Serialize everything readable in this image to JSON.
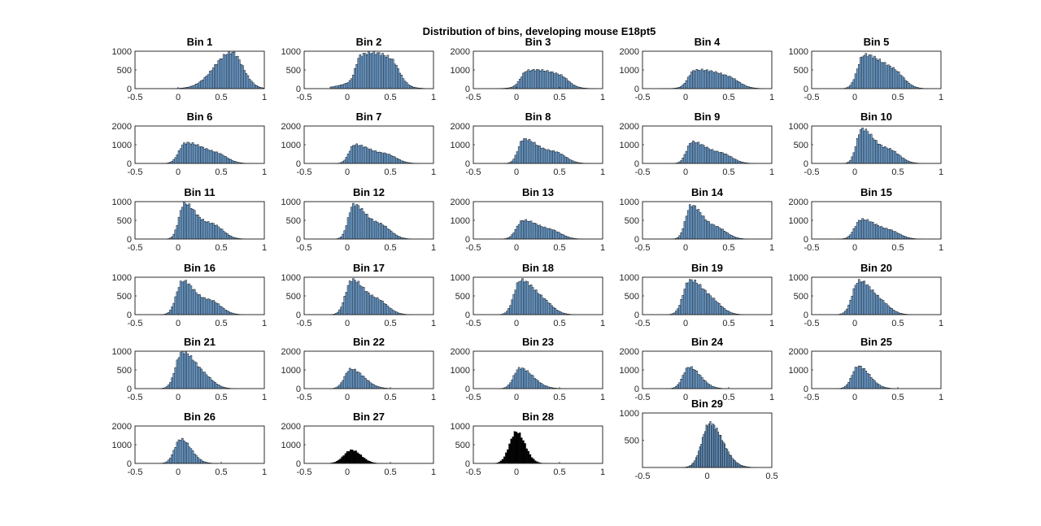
{
  "figure": {
    "title": "Distribution of bins, developing mouse E18pt5"
  },
  "chart_data": [
    {
      "type": "bar",
      "title": "Bin 1",
      "xlim": [
        -0.5,
        1
      ],
      "xticks": [
        "-0.5",
        "0",
        "0.5",
        "1"
      ],
      "ylim": [
        0,
        1000
      ],
      "yticks": [
        "0",
        "500",
        "1000"
      ],
      "color": "#73a4d4",
      "peaks": [
        {
          "mu": 0.62,
          "sl": 0.2,
          "sr": 0.13,
          "h": 920
        }
      ],
      "max": 970,
      "lo": -0.2,
      "hi": 1.0
    },
    {
      "type": "bar",
      "title": "Bin 2",
      "xlim": [
        -0.5,
        1
      ],
      "xticks": [
        "-0.5",
        "0",
        "0.5",
        "1"
      ],
      "ylim": [
        0,
        1000
      ],
      "yticks": [
        "0",
        "500",
        "1000"
      ],
      "color": "#73a4d4",
      "peaks": [
        {
          "mu": 0.15,
          "sl": 0.05,
          "sr": 0.25,
          "h": 720
        },
        {
          "mu": 0.5,
          "sl": 0.3,
          "sr": 0.1,
          "h": 760
        }
      ],
      "max": 960,
      "lo": -0.2,
      "hi": 0.9
    },
    {
      "type": "bar",
      "title": "Bin 3",
      "xlim": [
        -0.5,
        1
      ],
      "xticks": [
        "-0.5",
        "0",
        "0.5",
        "1"
      ],
      "ylim": [
        0,
        2000
      ],
      "yticks": [
        "0",
        "1000",
        "2000"
      ],
      "color": "#73a4d4",
      "peaks": [
        {
          "mu": 0.12,
          "sl": 0.07,
          "sr": 0.25,
          "h": 780
        },
        {
          "mu": 0.5,
          "sl": 0.25,
          "sr": 0.1,
          "h": 500
        }
      ],
      "max": 1000,
      "lo": -0.25,
      "hi": 0.9
    },
    {
      "type": "bar",
      "title": "Bin 4",
      "xlim": [
        -0.5,
        1
      ],
      "xticks": [
        "-0.5",
        "0",
        "0.5",
        "1"
      ],
      "ylim": [
        0,
        2000
      ],
      "yticks": [
        "0",
        "1000",
        "2000"
      ],
      "color": "#73a4d4",
      "peaks": [
        {
          "mu": 0.1,
          "sl": 0.07,
          "sr": 0.25,
          "h": 800
        },
        {
          "mu": 0.5,
          "sl": 0.25,
          "sr": 0.12,
          "h": 400
        }
      ],
      "max": 1000,
      "lo": -0.3,
      "hi": 0.9
    },
    {
      "type": "bar",
      "title": "Bin 5",
      "xlim": [
        -0.5,
        1
      ],
      "xticks": [
        "-0.5",
        "0",
        "0.5",
        "1"
      ],
      "ylim": [
        0,
        1000
      ],
      "yticks": [
        "0",
        "500",
        "1000"
      ],
      "color": "#73a4d4",
      "peaks": [
        {
          "mu": 0.1,
          "sl": 0.07,
          "sr": 0.18,
          "h": 750
        },
        {
          "mu": 0.45,
          "sl": 0.18,
          "sr": 0.12,
          "h": 380
        }
      ],
      "max": 900,
      "lo": -0.3,
      "hi": 0.85
    },
    {
      "type": "bar",
      "title": "Bin 6",
      "xlim": [
        -0.5,
        1
      ],
      "xticks": [
        "-0.5",
        "0",
        "0.5",
        "1"
      ],
      "ylim": [
        0,
        2000
      ],
      "yticks": [
        "0",
        "1000",
        "2000"
      ],
      "color": "#73a4d4",
      "peaks": [
        {
          "mu": 0.08,
          "sl": 0.07,
          "sr": 0.18,
          "h": 900
        },
        {
          "mu": 0.45,
          "sl": 0.2,
          "sr": 0.12,
          "h": 420
        }
      ],
      "max": 1100,
      "lo": -0.3,
      "hi": 0.85
    },
    {
      "type": "bar",
      "title": "Bin 7",
      "xlim": [
        -0.5,
        1
      ],
      "xticks": [
        "-0.5",
        "0",
        "0.5",
        "1"
      ],
      "ylim": [
        0,
        2000
      ],
      "yticks": [
        "0",
        "1000",
        "2000"
      ],
      "color": "#73a4d4",
      "peaks": [
        {
          "mu": 0.08,
          "sl": 0.06,
          "sr": 0.16,
          "h": 850
        },
        {
          "mu": 0.45,
          "sl": 0.18,
          "sr": 0.12,
          "h": 420
        }
      ],
      "max": 1000,
      "lo": -0.3,
      "hi": 0.85
    },
    {
      "type": "bar",
      "title": "Bin 8",
      "xlim": [
        -0.5,
        1
      ],
      "xticks": [
        "-0.5",
        "0",
        "0.5",
        "1"
      ],
      "ylim": [
        0,
        2000
      ],
      "yticks": [
        "0",
        "1000",
        "2000"
      ],
      "color": "#73a4d4",
      "peaks": [
        {
          "mu": 0.08,
          "sl": 0.06,
          "sr": 0.15,
          "h": 1100
        },
        {
          "mu": 0.45,
          "sl": 0.18,
          "sr": 0.12,
          "h": 520
        }
      ],
      "max": 1300,
      "lo": -0.3,
      "hi": 0.85
    },
    {
      "type": "bar",
      "title": "Bin 9",
      "xlim": [
        -0.5,
        1
      ],
      "xticks": [
        "-0.5",
        "0",
        "0.5",
        "1"
      ],
      "ylim": [
        0,
        2000
      ],
      "yticks": [
        "0",
        "1000",
        "2000"
      ],
      "color": "#73a4d4",
      "peaks": [
        {
          "mu": 0.07,
          "sl": 0.06,
          "sr": 0.15,
          "h": 950
        },
        {
          "mu": 0.42,
          "sl": 0.18,
          "sr": 0.12,
          "h": 450
        }
      ],
      "max": 1150,
      "lo": -0.3,
      "hi": 0.8
    },
    {
      "type": "bar",
      "title": "Bin 10",
      "xlim": [
        -0.5,
        1
      ],
      "xticks": [
        "-0.5",
        "0",
        "0.5",
        "1"
      ],
      "ylim": [
        0,
        1000
      ],
      "yticks": [
        "0",
        "500",
        "1000"
      ],
      "color": "#73a4d4",
      "peaks": [
        {
          "mu": 0.08,
          "sl": 0.06,
          "sr": 0.13,
          "h": 780
        },
        {
          "mu": 0.4,
          "sl": 0.15,
          "sr": 0.12,
          "h": 310
        }
      ],
      "max": 920,
      "lo": -0.3,
      "hi": 0.8
    },
    {
      "type": "bar",
      "title": "Bin 11",
      "xlim": [
        -0.5,
        1
      ],
      "xticks": [
        "-0.5",
        "0",
        "0.5",
        "1"
      ],
      "ylim": [
        0,
        1000
      ],
      "yticks": [
        "0",
        "500",
        "1000"
      ],
      "color": "#73a4d4",
      "peaks": [
        {
          "mu": 0.07,
          "sl": 0.06,
          "sr": 0.13,
          "h": 800
        },
        {
          "mu": 0.4,
          "sl": 0.15,
          "sr": 0.12,
          "h": 330
        }
      ],
      "max": 950,
      "lo": -0.3,
      "hi": 0.8
    },
    {
      "type": "bar",
      "title": "Bin 12",
      "xlim": [
        -0.5,
        1
      ],
      "xticks": [
        "-0.5",
        "0",
        "0.5",
        "1"
      ],
      "ylim": [
        0,
        1000
      ],
      "yticks": [
        "0",
        "500",
        "1000"
      ],
      "color": "#73a4d4",
      "peaks": [
        {
          "mu": 0.07,
          "sl": 0.06,
          "sr": 0.13,
          "h": 780
        },
        {
          "mu": 0.38,
          "sl": 0.15,
          "sr": 0.12,
          "h": 330
        }
      ],
      "max": 920,
      "lo": -0.3,
      "hi": 0.8
    },
    {
      "type": "bar",
      "title": "Bin 13",
      "xlim": [
        -0.5,
        1
      ],
      "xticks": [
        "-0.5",
        "0",
        "0.5",
        "1"
      ],
      "ylim": [
        0,
        2000
      ],
      "yticks": [
        "0",
        "1000",
        "2000"
      ],
      "color": "#73a4d4",
      "peaks": [
        {
          "mu": 0.07,
          "sl": 0.07,
          "sr": 0.15,
          "h": 850
        },
        {
          "mu": 0.4,
          "sl": 0.18,
          "sr": 0.12,
          "h": 420
        }
      ],
      "max": 1000,
      "lo": -0.3,
      "hi": 0.8
    },
    {
      "type": "bar",
      "title": "Bin 14",
      "xlim": [
        -0.5,
        1
      ],
      "xticks": [
        "-0.5",
        "0",
        "0.5",
        "1"
      ],
      "ylim": [
        0,
        1000
      ],
      "yticks": [
        "0",
        "500",
        "1000"
      ],
      "color": "#73a4d4",
      "peaks": [
        {
          "mu": 0.06,
          "sl": 0.06,
          "sr": 0.12,
          "h": 780
        },
        {
          "mu": 0.35,
          "sl": 0.15,
          "sr": 0.12,
          "h": 280
        }
      ],
      "max": 900,
      "lo": -0.3,
      "hi": 0.75
    },
    {
      "type": "bar",
      "title": "Bin 15",
      "xlim": [
        -0.5,
        1
      ],
      "xticks": [
        "-0.5",
        "0",
        "0.5",
        "1"
      ],
      "ylim": [
        0,
        2000
      ],
      "yticks": [
        "0",
        "1000",
        "2000"
      ],
      "color": "#73a4d4",
      "peaks": [
        {
          "mu": 0.07,
          "sl": 0.07,
          "sr": 0.15,
          "h": 850
        },
        {
          "mu": 0.4,
          "sl": 0.18,
          "sr": 0.12,
          "h": 380
        }
      ],
      "max": 1050,
      "lo": -0.3,
      "hi": 0.8
    },
    {
      "type": "bar",
      "title": "Bin 16",
      "xlim": [
        -0.5,
        1
      ],
      "xticks": [
        "-0.5",
        "0",
        "0.5",
        "1"
      ],
      "ylim": [
        0,
        1000
      ],
      "yticks": [
        "0",
        "500",
        "1000"
      ],
      "color": "#73a4d4",
      "peaks": [
        {
          "mu": 0.05,
          "sl": 0.07,
          "sr": 0.13,
          "h": 800
        },
        {
          "mu": 0.38,
          "sl": 0.15,
          "sr": 0.12,
          "h": 330
        }
      ],
      "max": 900,
      "lo": -0.3,
      "hi": 0.75
    },
    {
      "type": "bar",
      "title": "Bin 17",
      "xlim": [
        -0.5,
        1
      ],
      "xticks": [
        "-0.5",
        "0",
        "0.5",
        "1"
      ],
      "ylim": [
        0,
        1000
      ],
      "yticks": [
        "0",
        "500",
        "1000"
      ],
      "color": "#73a4d4",
      "peaks": [
        {
          "mu": 0.05,
          "sl": 0.07,
          "sr": 0.13,
          "h": 820
        },
        {
          "mu": 0.35,
          "sl": 0.15,
          "sr": 0.12,
          "h": 350
        }
      ],
      "max": 930,
      "lo": -0.3,
      "hi": 0.75
    },
    {
      "type": "bar",
      "title": "Bin 18",
      "xlim": [
        -0.5,
        1
      ],
      "xticks": [
        "-0.5",
        "0",
        "0.5",
        "1"
      ],
      "ylim": [
        0,
        1000
      ],
      "yticks": [
        "0",
        "500",
        "1000"
      ],
      "color": "#73a4d4",
      "peaks": [
        {
          "mu": 0.04,
          "sl": 0.07,
          "sr": 0.14,
          "h": 830
        },
        {
          "mu": 0.3,
          "sl": 0.15,
          "sr": 0.12,
          "h": 330
        }
      ],
      "max": 920,
      "lo": -0.3,
      "hi": 0.75
    },
    {
      "type": "bar",
      "title": "Bin 19",
      "xlim": [
        -0.5,
        1
      ],
      "xticks": [
        "-0.5",
        "0",
        "0.5",
        "1"
      ],
      "ylim": [
        0,
        1000
      ],
      "yticks": [
        "0",
        "500",
        "1000"
      ],
      "color": "#73a4d4",
      "peaks": [
        {
          "mu": 0.04,
          "sl": 0.07,
          "sr": 0.14,
          "h": 830
        },
        {
          "mu": 0.3,
          "sl": 0.15,
          "sr": 0.12,
          "h": 330
        }
      ],
      "max": 920,
      "lo": -0.3,
      "hi": 0.75
    },
    {
      "type": "bar",
      "title": "Bin 20",
      "xlim": [
        -0.5,
        1
      ],
      "xticks": [
        "-0.5",
        "0",
        "0.5",
        "1"
      ],
      "ylim": [
        0,
        1000
      ],
      "yticks": [
        "0",
        "500",
        "1000"
      ],
      "color": "#73a4d4",
      "peaks": [
        {
          "mu": 0.04,
          "sl": 0.07,
          "sr": 0.13,
          "h": 800
        },
        {
          "mu": 0.28,
          "sl": 0.15,
          "sr": 0.12,
          "h": 330
        }
      ],
      "max": 900,
      "lo": -0.3,
      "hi": 0.7
    },
    {
      "type": "bar",
      "title": "Bin 21",
      "xlim": [
        -0.5,
        1
      ],
      "xticks": [
        "-0.5",
        "0",
        "0.5",
        "1"
      ],
      "ylim": [
        0,
        1000
      ],
      "yticks": [
        "0",
        "500",
        "1000"
      ],
      "color": "#73a4d4",
      "peaks": [
        {
          "mu": 0.04,
          "sl": 0.07,
          "sr": 0.13,
          "h": 880
        },
        {
          "mu": 0.28,
          "sl": 0.15,
          "sr": 0.12,
          "h": 330
        }
      ],
      "max": 980,
      "lo": -0.3,
      "hi": 0.7
    },
    {
      "type": "bar",
      "title": "Bin 22",
      "xlim": [
        -0.5,
        1
      ],
      "xticks": [
        "-0.5",
        "0",
        "0.5",
        "1"
      ],
      "ylim": [
        0,
        2000
      ],
      "yticks": [
        "0",
        "1000",
        "2000"
      ],
      "color": "#73a4d4",
      "peaks": [
        {
          "mu": 0.04,
          "sl": 0.07,
          "sr": 0.15,
          "h": 1000
        }
      ],
      "max": 1050,
      "lo": -0.3,
      "hi": 0.7
    },
    {
      "type": "bar",
      "title": "Bin 23",
      "xlim": [
        -0.5,
        1
      ],
      "xticks": [
        "-0.5",
        "0",
        "0.5",
        "1"
      ],
      "ylim": [
        0,
        2000
      ],
      "yticks": [
        "0",
        "1000",
        "2000"
      ],
      "color": "#73a4d4",
      "peaks": [
        {
          "mu": 0.04,
          "sl": 0.07,
          "sr": 0.15,
          "h": 1050
        }
      ],
      "max": 1100,
      "lo": -0.3,
      "hi": 0.7
    },
    {
      "type": "bar",
      "title": "Bin 24",
      "xlim": [
        -0.5,
        1
      ],
      "xticks": [
        "-0.5",
        "0",
        "0.5",
        "1"
      ],
      "ylim": [
        0,
        2000
      ],
      "yticks": [
        "0",
        "1000",
        "2000"
      ],
      "color": "#73a4d4",
      "peaks": [
        {
          "mu": 0.04,
          "sl": 0.07,
          "sr": 0.13,
          "h": 1100
        }
      ],
      "max": 1150,
      "lo": -0.3,
      "hi": 0.65
    },
    {
      "type": "bar",
      "title": "Bin 25",
      "xlim": [
        -0.5,
        1
      ],
      "xticks": [
        "-0.5",
        "0",
        "0.5",
        "1"
      ],
      "ylim": [
        0,
        2000
      ],
      "yticks": [
        "0",
        "1000",
        "2000"
      ],
      "color": "#73a4d4",
      "peaks": [
        {
          "mu": 0.04,
          "sl": 0.07,
          "sr": 0.13,
          "h": 1150
        }
      ],
      "max": 1200,
      "lo": -0.3,
      "hi": 0.65
    },
    {
      "type": "bar",
      "title": "Bin 26",
      "xlim": [
        -0.5,
        1
      ],
      "xticks": [
        "-0.5",
        "0",
        "0.5",
        "1"
      ],
      "ylim": [
        0,
        2000
      ],
      "yticks": [
        "0",
        "1000",
        "2000"
      ],
      "color": "#73a4d4",
      "peaks": [
        {
          "mu": 0.03,
          "sl": 0.07,
          "sr": 0.12,
          "h": 1250
        }
      ],
      "max": 1300,
      "lo": -0.3,
      "hi": 0.65
    },
    {
      "type": "bar",
      "title": "Bin 27",
      "xlim": [
        -0.5,
        1
      ],
      "xticks": [
        "-0.5",
        "0",
        "0.5",
        "1"
      ],
      "ylim": [
        0,
        2000
      ],
      "yticks": [
        "0",
        "1000",
        "2000"
      ],
      "color": "#000000",
      "peaks": [
        {
          "mu": 0.05,
          "sl": 0.09,
          "sr": 0.11,
          "h": 700
        }
      ],
      "max": 720,
      "lo": -0.35,
      "hi": 0.7
    },
    {
      "type": "bar",
      "title": "Bin 28",
      "xlim": [
        -0.5,
        1
      ],
      "xticks": [
        "-0.5",
        "0",
        "0.5",
        "1"
      ],
      "ylim": [
        0,
        1000
      ],
      "yticks": [
        "0",
        "500",
        "1000"
      ],
      "color": "#000000",
      "peaks": [
        {
          "mu": 0.0,
          "sl": 0.08,
          "sr": 0.1,
          "h": 830
        }
      ],
      "max": 850,
      "lo": -0.35,
      "hi": 0.7
    },
    {
      "type": "bar",
      "title": "Bin 29",
      "xlim": [
        -0.5,
        0.5
      ],
      "xticks": [
        "-0.5",
        "0",
        "0.5"
      ],
      "ylim": [
        0,
        1000
      ],
      "yticks": [
        "500",
        "1000"
      ],
      "color": "#73a4d4",
      "peaks": [
        {
          "mu": 0.02,
          "sl": 0.06,
          "sr": 0.1,
          "h": 780
        }
      ],
      "max": 810,
      "lo": -0.25,
      "hi": 0.45,
      "tall": true
    }
  ]
}
